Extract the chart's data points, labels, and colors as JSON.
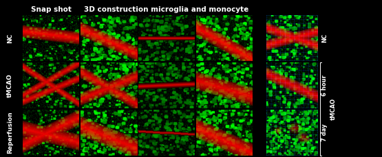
{
  "title_left": "Snap shot",
  "title_right": "3D construction microglia and monocyte",
  "row_labels_left": [
    "NC",
    "tMCAO",
    "Reperfusion"
  ],
  "right_row_labels": [
    "NC",
    "6 hour",
    "7 day"
  ],
  "right_group_label": "tMCAO",
  "bg_color": "#000000",
  "title_color": "#ffffff",
  "label_color": "#ffffff",
  "fig_bg": "#111111",
  "title_fontsize": 7.5,
  "label_fontsize": 6.5,
  "small_label_fontsize": 6.0
}
